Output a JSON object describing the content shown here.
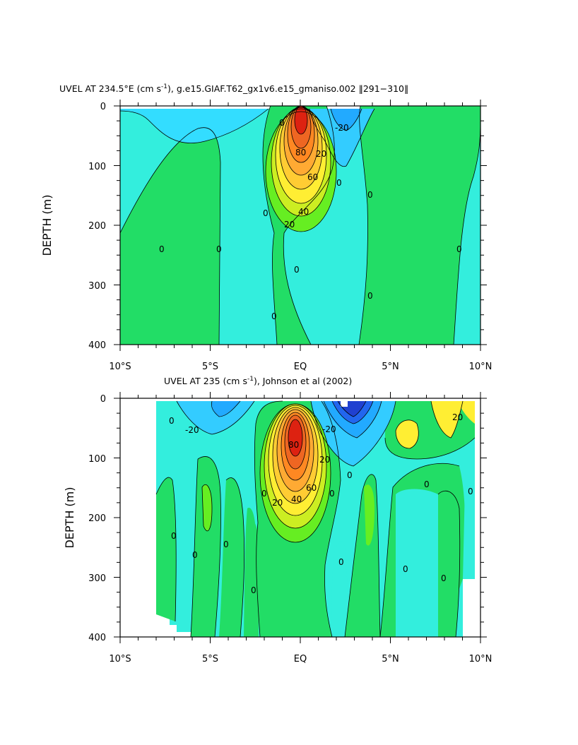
{
  "chart_data": [
    {
      "type": "contour",
      "title_main": "UVEL AT 234.5°E (cm s",
      "title_sup": "-1",
      "title_rest": "), g.e15.GIAF.T62_gx1v6.e15_gmaniso.002 ‖291−310‖",
      "ylabel": "DEPTH (m)",
      "xlabel": "",
      "x_ticks": [
        "10°S",
        "5°S",
        "EQ",
        "5°N",
        "10°N"
      ],
      "y_ticks": [
        "0",
        "100",
        "200",
        "300",
        "400"
      ],
      "xlim": [
        -10,
        10
      ],
      "ylim": [
        400,
        0
      ],
      "contour_labels": [
        "0",
        "0",
        "0",
        "0",
        "0",
        "0",
        "0",
        "0",
        "0",
        "0",
        "-20",
        "20",
        "40",
        "60",
        "80",
        "20"
      ],
      "colors": {
        "neg_strong": "#2040d0",
        "neg": "#33ccff",
        "neg_weak": "#33eedd",
        "zero": "#22dd66",
        "pos_weak": "#66ee22",
        "pos": "#ffee33",
        "pos_strong": "#ff8822",
        "max": "#dd2211"
      }
    },
    {
      "type": "contour",
      "title_main": "UVEL AT 235 (cm s",
      "title_sup": "-1",
      "title_rest": "), Johnson et al (2002)",
      "ylabel": "DEPTH (m)",
      "xlabel": "",
      "x_ticks": [
        "10°S",
        "5°S",
        "EQ",
        "5°N",
        "10°N"
      ],
      "y_ticks": [
        "0",
        "100",
        "200",
        "300",
        "400"
      ],
      "xlim": [
        -10,
        10
      ],
      "ylim": [
        400,
        0
      ],
      "contour_labels": [
        "0",
        "0",
        "0",
        "0",
        "0",
        "0",
        "0",
        "0",
        "0",
        "0",
        "0",
        "-20",
        "-20",
        "20",
        "40",
        "60",
        "80",
        "20",
        "20",
        "0",
        "0"
      ]
    }
  ]
}
